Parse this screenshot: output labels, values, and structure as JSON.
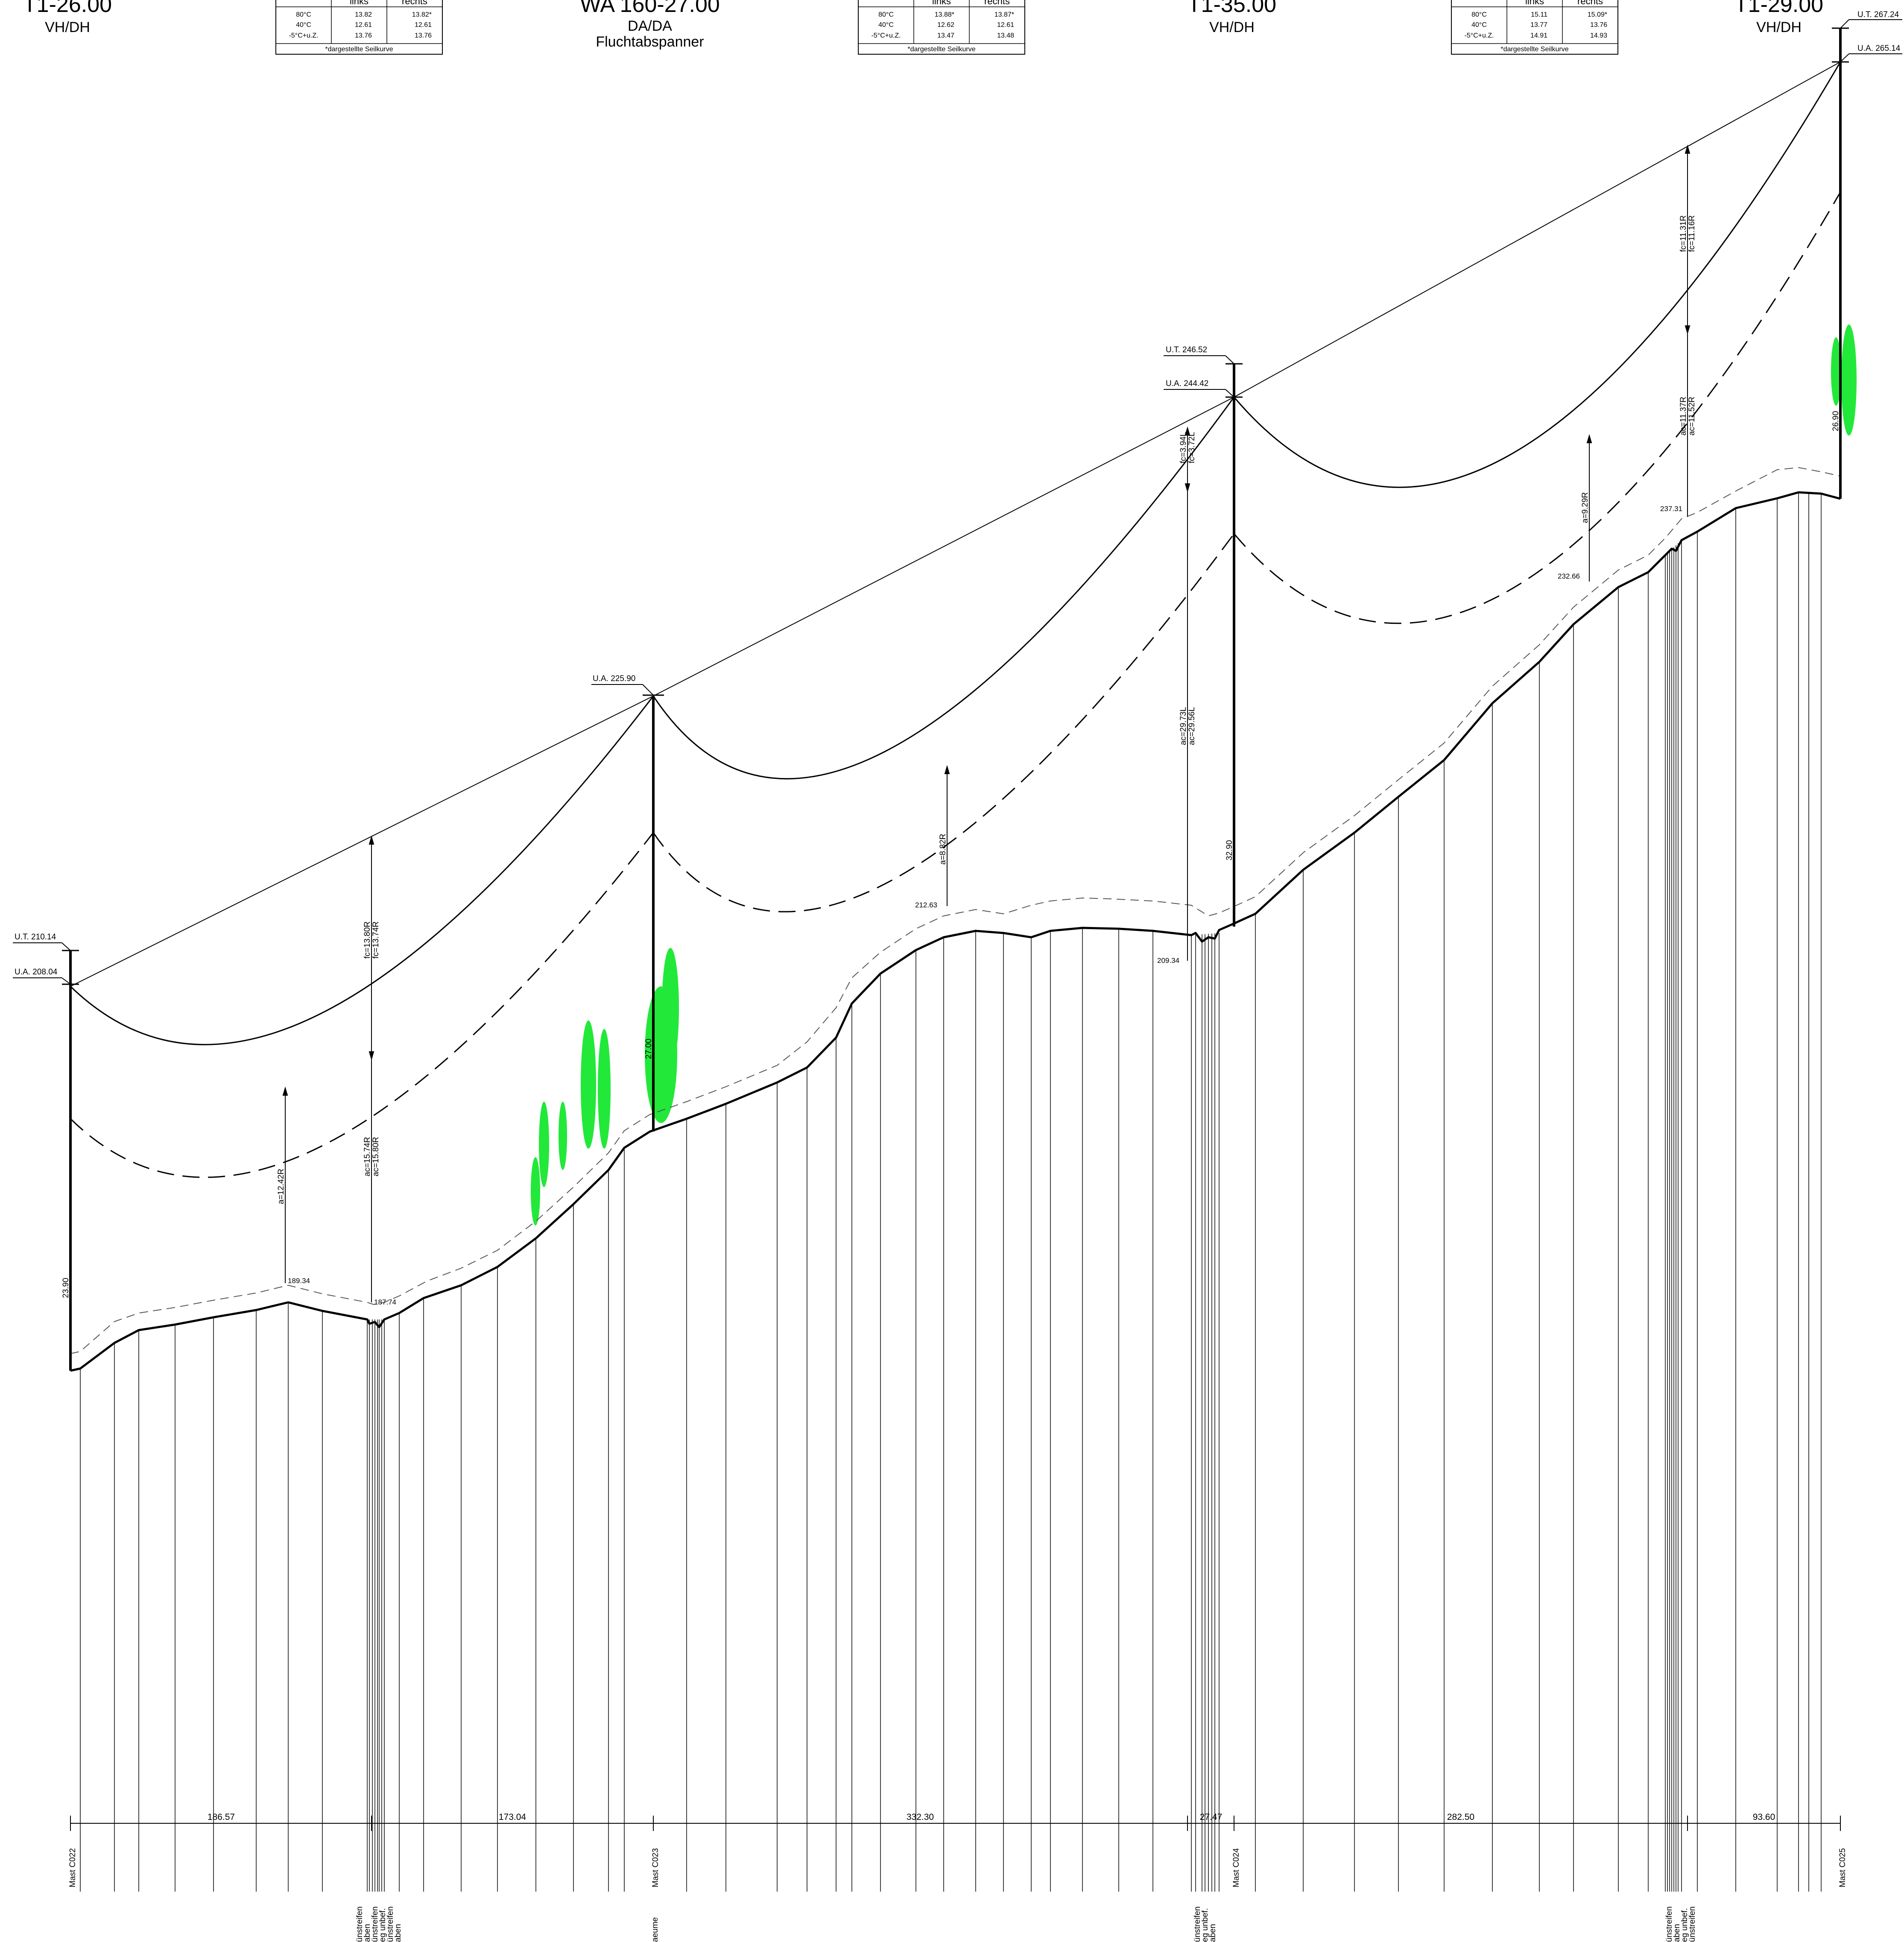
{
  "towers": [
    {
      "id": "t1",
      "name": "T1-26.00",
      "type": "VH/DH",
      "note": ""
    },
    {
      "id": "t2",
      "name": "WA 160-27.00",
      "type": "DA/DA",
      "note": "Fluchtabspanner"
    },
    {
      "id": "t3",
      "name": "T1-35.00",
      "type": "VH/DH",
      "note": ""
    },
    {
      "id": "t4",
      "name": "T1-29.00",
      "type": "VH/DH",
      "note": ""
    }
  ],
  "sag_tables": [
    {
      "header": [
        "",
        "links",
        "rechts"
      ],
      "rows": [
        [
          "80°C",
          "13.82",
          "13.82*"
        ],
        [
          "40°C",
          "12.61",
          "12.61"
        ],
        [
          "-5°C+u.Z.",
          "13.76",
          "13.76"
        ]
      ],
      "footer": "*dargestellte Seilkurve"
    },
    {
      "header": [
        "",
        "links",
        "rechts"
      ],
      "rows": [
        [
          "80°C",
          "13.88*",
          "13.87*"
        ],
        [
          "40°C",
          "12.62",
          "12.61"
        ],
        [
          "-5°C+u.Z.",
          "13.47",
          "13.48"
        ]
      ],
      "footer": "*dargestellte Seilkurve"
    },
    {
      "header": [
        "",
        "links",
        "rechts"
      ],
      "rows": [
        [
          "80°C",
          "15.11",
          "15.09*"
        ],
        [
          "40°C",
          "13.77",
          "13.76"
        ],
        [
          "-5°C+u.Z.",
          "14.91",
          "14.93"
        ]
      ],
      "footer": "*dargestellte Seilkurve"
    }
  ],
  "level_labels": {
    "t1_ut": "U.T. 210.14",
    "t1_ua": "U.A. 208.04",
    "t2_ua": "U.A. 225.90",
    "t3_ut": "U.T. 246.52",
    "t3_ua": "U.A. 244.42",
    "t4_ut": "U.T. 267.24",
    "t4_ua": "U.A. 265.14"
  },
  "tower_heights": {
    "t1": "23.90",
    "t2": "27.00",
    "t3": "32.90",
    "t4": "26.90"
  },
  "clearances": {
    "a1": "a=12.42R",
    "ac1": "ac=15.74R",
    "ac1b": "ac=15.80R",
    "fc1": "fc=13.80R",
    "fc1b": "fc=13.74R",
    "a2": "a=8.82R",
    "fc3": "fc=3.94L",
    "fc3b": "fc=3.72L",
    "ac3": "ac=29.73L",
    "ac3b": "ac=29.56L",
    "a4": "a=9.29R",
    "fc4": "fc=11.31R",
    "fc4b": "fc=11.16R",
    "ac4": "ac=11.37R",
    "ac4b": "ac=11.52R"
  },
  "ground_points": {
    "g1": "189.34",
    "g2": "187.74",
    "g3": "212.63",
    "g4": "209.34",
    "g5": "232.66",
    "g6": "237.31"
  },
  "spans": [
    "186.57",
    "173.04",
    "332.30",
    "27.47",
    "282.50",
    "93.60"
  ],
  "masts": [
    "Mast C022",
    "Mast C023",
    "Mast C024",
    "Mast C025"
  ],
  "crossing_labels": {
    "c1": [
      "ünstreifen",
      "aben",
      "ünstreifen",
      "eg unbef.",
      "ünstreifen",
      "aben"
    ],
    "c2": [
      "aeume"
    ],
    "c3": [
      "ünstreifen",
      "eg unbef.",
      "aben"
    ],
    "c4": [
      "ünstreifen",
      "aben",
      "eg unbef.",
      "ünstreifen"
    ]
  },
  "colors": {
    "line": "#000000",
    "vegetation": "#22e83a",
    "background": "#ffffff"
  }
}
